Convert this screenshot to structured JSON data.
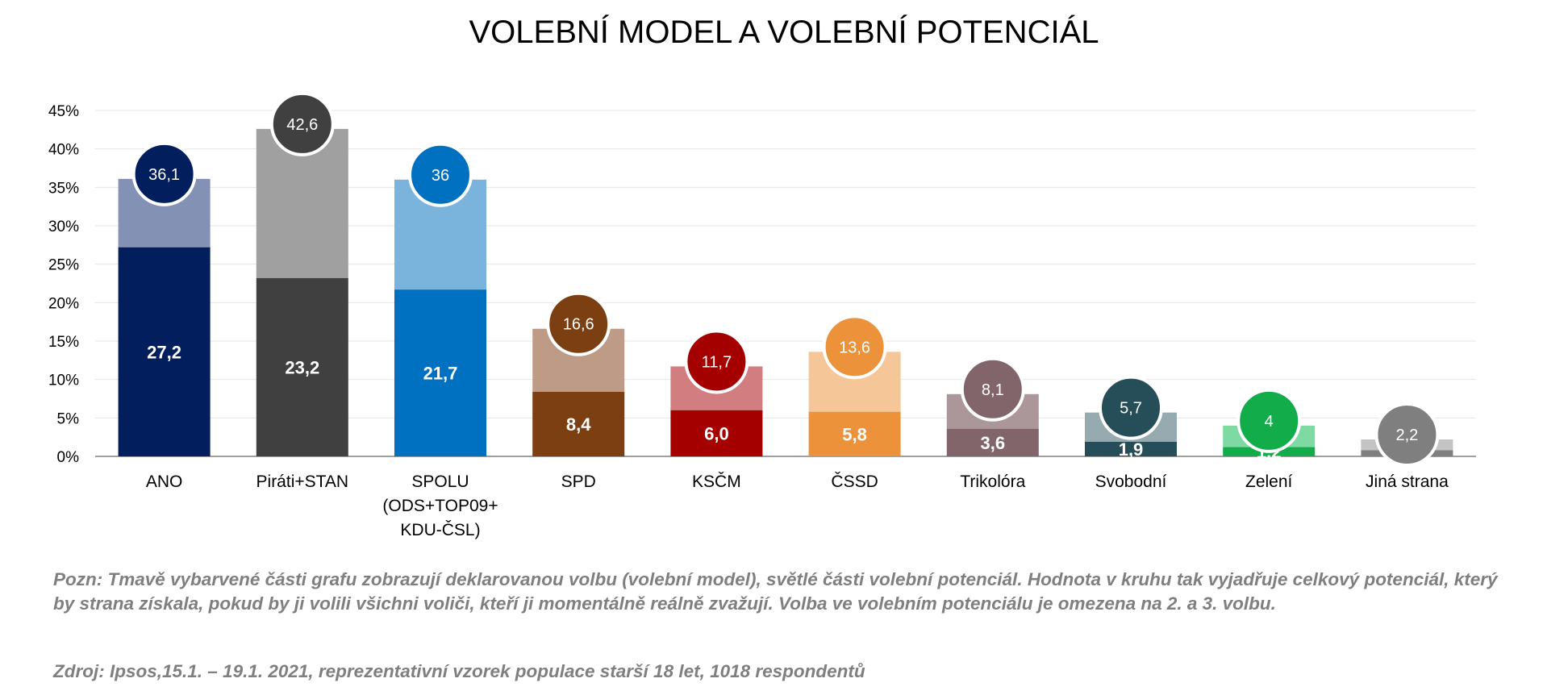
{
  "title": "VOLEBNÍ MODEL A VOLEBNÍ POTENCIÁL",
  "note": "Pozn: Tmavě vybarvené části grafu zobrazují deklarovanou volbu (volební model), světlé části volební potenciál. Hodnota v kruhu tak vyjadřuje celkový potenciál, který by strana získala, pokud by ji volili všichni voliči, kteří ji momentálně reálně zvažují. Volba ve volebním potenciálu je omezena na 2. a 3. volbu.",
  "source": "Zdroj: Ipsos,15.1. – 19.1. 2021, reprezentativní vzorek populace starší 18 let, 1018 respondentů",
  "chart_data": {
    "type": "bar",
    "title": "VOLEBNÍ MODEL A VOLEBNÍ POTENCIÁL",
    "ylim": [
      0,
      45
    ],
    "yticks": [
      "0%",
      "5%",
      "10%",
      "15%",
      "20%",
      "25%",
      "30%",
      "35%",
      "40%",
      "45%"
    ],
    "grid": true,
    "categories": [
      [
        "ANO"
      ],
      [
        "Piráti+STAN"
      ],
      [
        "SPOLU",
        "(ODS+TOP09+",
        "KDU-ČSL)"
      ],
      [
        "SPD"
      ],
      [
        "KSČM"
      ],
      [
        "ČSSD"
      ],
      [
        "Trikolóra"
      ],
      [
        "Svobodní"
      ],
      [
        "Zelení"
      ],
      [
        "Jiná strana"
      ]
    ],
    "model": [
      27.2,
      23.2,
      21.7,
      8.4,
      6.0,
      5.8,
      3.6,
      1.9,
      1.2,
      0.8
    ],
    "model_labels": [
      "27,2",
      "23,2",
      "21,7",
      "8,4",
      "6,0",
      "5,8",
      "3,6",
      "1,9",
      "1,2",
      "0,8"
    ],
    "potential": [
      36.1,
      42.6,
      36,
      16.6,
      11.7,
      13.6,
      8.1,
      5.7,
      4,
      2.2
    ],
    "potential_labels": [
      "36,1",
      "42,6",
      "36",
      "16,6",
      "11,7",
      "13,6",
      "8,1",
      "5,7",
      "4",
      "2,2"
    ],
    "dark_colors": [
      "#031e5c",
      "#404040",
      "#0070c0",
      "#7b3f12",
      "#a50000",
      "#eb923a",
      "#82656a",
      "#254e58",
      "#12ad4a",
      "#7f7f7f"
    ],
    "light_colors": [
      "#8391b5",
      "#a0a0a0",
      "#7ab3dc",
      "#bd9b86",
      "#d27d7f",
      "#f5c698",
      "#ab9799",
      "#97aab0",
      "#7fd9a2",
      "#c3c3c3"
    ]
  }
}
